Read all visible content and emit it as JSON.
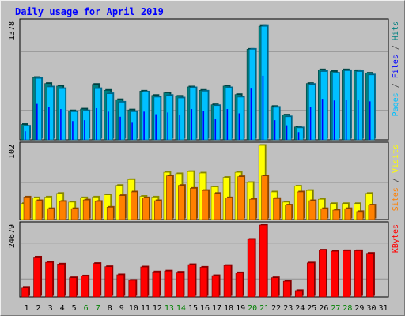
{
  "chart_data": [
    {
      "type": "bar",
      "title": "Daily usage for April 2019",
      "ylabel_parts": [
        {
          "text": "Pages",
          "color": "#00c0ff"
        },
        {
          "text": " / ",
          "color": "#404040"
        },
        {
          "text": "Files",
          "color": "#0000ff"
        },
        {
          "text": " / ",
          "color": "#404040"
        },
        {
          "text": "Hits",
          "color": "#008080"
        }
      ],
      "y_max_label": "1378",
      "ylim": [
        0,
        1378
      ],
      "categories": [
        "1",
        "2",
        "3",
        "4",
        "5",
        "6",
        "7",
        "8",
        "9",
        "10",
        "11",
        "12",
        "13",
        "14",
        "15",
        "16",
        "17",
        "18",
        "19",
        "20",
        "21",
        "22",
        "23",
        "24",
        "25",
        "26",
        "27",
        "28",
        "29",
        "30",
        "31"
      ],
      "category_colors": [
        "#000000",
        "#000000",
        "#000000",
        "#000000",
        "#000000",
        "#008000",
        "#008000",
        "#000000",
        "#000000",
        "#000000",
        "#000000",
        "#000000",
        "#008000",
        "#008000",
        "#000000",
        "#000000",
        "#000000",
        "#000000",
        "#000000",
        "#008000",
        "#008000",
        "#000000",
        "#000000",
        "#000000",
        "#000000",
        "#000000",
        "#008000",
        "#008000",
        "#000000",
        "#000000",
        "#000000"
      ],
      "series": [
        {
          "name": "Hits",
          "color": "#008080",
          "values": [
            180,
            730,
            660,
            630,
            340,
            360,
            650,
            580,
            470,
            350,
            570,
            520,
            550,
            510,
            620,
            580,
            410,
            630,
            530,
            1060,
            1330,
            390,
            290,
            150,
            660,
            820,
            800,
            820,
            810,
            780,
            0
          ]
        },
        {
          "name": "Files",
          "color": "#0000ff",
          "values": [
            100,
            420,
            380,
            360,
            220,
            230,
            370,
            330,
            270,
            200,
            330,
            300,
            320,
            290,
            360,
            340,
            240,
            360,
            310,
            600,
            750,
            230,
            170,
            90,
            380,
            480,
            460,
            470,
            470,
            450,
            0
          ]
        },
        {
          "name": "Pages",
          "color": "#00c0ff",
          "values": [
            160,
            720,
            620,
            600,
            330,
            340,
            600,
            540,
            440,
            330,
            560,
            500,
            520,
            490,
            610,
            570,
            400,
            610,
            500,
            1060,
            1330,
            380,
            270,
            140,
            650,
            800,
            780,
            810,
            800,
            760,
            0
          ]
        }
      ]
    },
    {
      "type": "bar",
      "ylabel_parts": [
        {
          "text": "Sites",
          "color": "#ff8000"
        },
        {
          "text": " / ",
          "color": "#404040"
        },
        {
          "text": "Visits",
          "color": "#ffff00"
        }
      ],
      "y_max_label": "102",
      "ylim": [
        0,
        102
      ],
      "series": [
        {
          "name": "Visits",
          "color": "#ffff00",
          "values": [
            22,
            30,
            31,
            36,
            24,
            30,
            31,
            34,
            47,
            55,
            32,
            31,
            65,
            63,
            66,
            64,
            45,
            58,
            65,
            51,
            102,
            38,
            24,
            46,
            40,
            28,
            22,
            22,
            22,
            36,
            0
          ]
        },
        {
          "name": "Sites",
          "color": "#ff8000",
          "values": [
            31,
            26,
            15,
            25,
            15,
            27,
            25,
            17,
            33,
            38,
            30,
            26,
            60,
            47,
            43,
            40,
            36,
            30,
            59,
            28,
            60,
            29,
            20,
            38,
            26,
            15,
            13,
            15,
            11,
            20,
            0
          ]
        }
      ]
    },
    {
      "type": "bar",
      "ylabel_parts": [
        {
          "text": "KBytes",
          "color": "#ff0000"
        }
      ],
      "y_max_label": "24679",
      "ylim": [
        0,
        24679
      ],
      "series": [
        {
          "name": "KBytes",
          "color": "#ff0000",
          "values": [
            3300,
            13700,
            11900,
            11300,
            6600,
            7200,
            11500,
            10400,
            7600,
            5700,
            10300,
            8600,
            8900,
            8500,
            11100,
            10200,
            7300,
            10800,
            8300,
            19800,
            24679,
            6600,
            5400,
            2200,
            11700,
            16100,
            15700,
            15900,
            15900,
            15000,
            0
          ]
        }
      ]
    }
  ]
}
